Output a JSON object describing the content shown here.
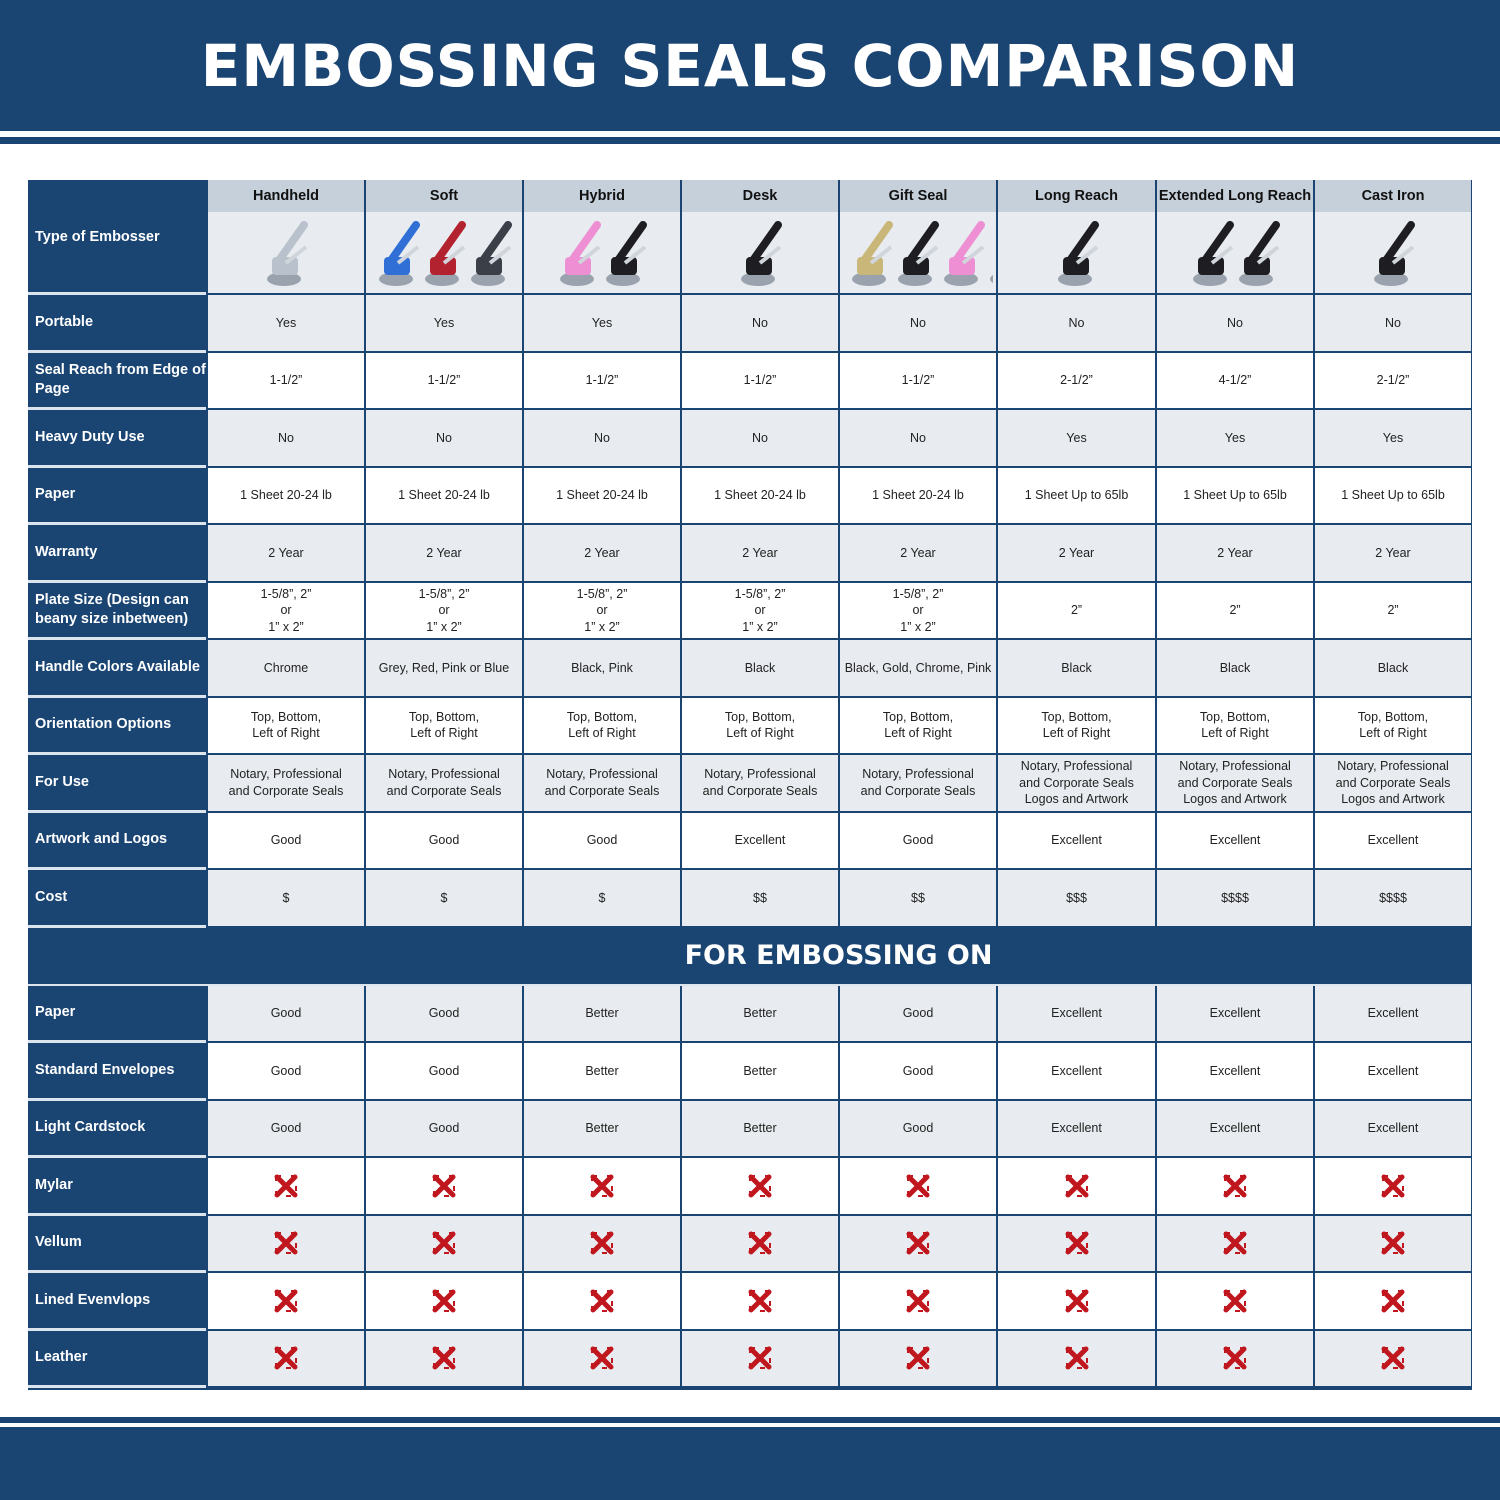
{
  "title": "EMBOSSING SEALS COMPARISON",
  "colors": {
    "brand_blue": "#1a4573",
    "header_gray": "#c5d0db",
    "row_gray": "#e8ecf0",
    "x_red": "#c0161e"
  },
  "header_label": "Type of Embosser",
  "columns": [
    {
      "name": "Handheld",
      "image": "chrome-handheld-embosser",
      "colors": [
        "#b9c2cc"
      ]
    },
    {
      "name": "Soft",
      "image": "blue-red-grey-soft-embossers",
      "colors": [
        "#2f6fd6",
        "#b3232f",
        "#3a3f48"
      ]
    },
    {
      "name": "Hybrid",
      "image": "pink-black-hybrid-embossers",
      "colors": [
        "#ee8fd3",
        "#1e1e22"
      ]
    },
    {
      "name": "Desk",
      "image": "black-desk-embosser",
      "colors": [
        "#1e1e22"
      ]
    },
    {
      "name": "Gift Seal",
      "image": "gold-black-pink-chrome-gift-seals",
      "colors": [
        "#c9b77a",
        "#1e1e22",
        "#ee8fd3",
        "#b9c2cc"
      ]
    },
    {
      "name": "Long Reach",
      "image": "black-long-reach-embosser",
      "colors": [
        "#1e1e22"
      ]
    },
    {
      "name": "Extended Long Reach",
      "image": "black-extended-long-reach-embossers",
      "colors": [
        "#1e1e22",
        "#1e1e22"
      ]
    },
    {
      "name": "Cast Iron",
      "image": "black-cast-iron-embosser",
      "colors": [
        "#1e1e22"
      ]
    }
  ],
  "rows": [
    {
      "label": "Portable",
      "values": [
        "Yes",
        "Yes",
        "Yes",
        "No",
        "No",
        "No",
        "No",
        "No"
      ]
    },
    {
      "label": "Seal Reach from Edge of Page",
      "values": [
        "1-1/2”",
        "1-1/2”",
        "1-1/2”",
        "1-1/2”",
        "1-1/2”",
        "2-1/2”",
        "4-1/2”",
        "2-1/2”"
      ]
    },
    {
      "label": "Heavy Duty Use",
      "values": [
        "No",
        "No",
        "No",
        "No",
        "No",
        "Yes",
        "Yes",
        "Yes"
      ]
    },
    {
      "label": "Paper",
      "values": [
        "1 Sheet 20-24 lb",
        "1 Sheet 20-24 lb",
        "1 Sheet 20-24 lb",
        "1 Sheet 20-24 lb",
        "1 Sheet 20-24 lb",
        "1 Sheet Up to 65lb",
        "1 Sheet Up to 65lb",
        "1 Sheet Up to 65lb"
      ]
    },
    {
      "label": "Warranty",
      "values": [
        "2 Year",
        "2 Year",
        "2 Year",
        "2 Year",
        "2 Year",
        "2 Year",
        "2 Year",
        "2 Year"
      ]
    },
    {
      "label": "Plate Size (Design can beany size inbetween)",
      "values": [
        "1-5/8”, 2”\nor\n1” x 2”",
        "1-5/8”, 2”\nor\n1” x 2”",
        "1-5/8”, 2”\nor\n1” x 2”",
        "1-5/8”, 2”\nor\n1” x 2”",
        "1-5/8”, 2”\nor\n1” x 2”",
        "2”",
        "2”",
        "2”"
      ]
    },
    {
      "label": "Handle Colors Available",
      "values": [
        "Chrome",
        "Grey, Red, Pink or Blue",
        "Black, Pink",
        "Black",
        "Black, Gold, Chrome, Pink",
        "Black",
        "Black",
        "Black"
      ]
    },
    {
      "label": "Orientation Options",
      "values": [
        "Top, Bottom,\nLeft of Right",
        "Top, Bottom,\nLeft of Right",
        "Top, Bottom,\nLeft of Right",
        "Top, Bottom,\nLeft of Right",
        "Top, Bottom,\nLeft of Right",
        "Top, Bottom,\nLeft of Right",
        "Top, Bottom,\nLeft of Right",
        "Top, Bottom,\nLeft of Right"
      ]
    },
    {
      "label": "For Use",
      "values": [
        "Notary, Professional\nand Corporate Seals",
        "Notary, Professional\nand Corporate Seals",
        "Notary, Professional\nand Corporate Seals",
        "Notary, Professional\nand Corporate Seals",
        "Notary, Professional\nand Corporate Seals",
        "Notary, Professional\nand Corporate Seals\nLogos and Artwork",
        "Notary, Professional\nand Corporate Seals\nLogos and Artwork",
        "Notary, Professional\nand Corporate Seals\nLogos and Artwork"
      ]
    },
    {
      "label": "Artwork and Logos",
      "values": [
        "Good",
        "Good",
        "Good",
        "Excellent",
        "Good",
        "Excellent",
        "Excellent",
        "Excellent"
      ]
    },
    {
      "label": "Cost",
      "values": [
        "$",
        "$",
        "$",
        "$$",
        "$$",
        "$$$",
        "$$$$",
        "$$$$"
      ]
    }
  ],
  "section_title": "FOR EMBOSSING ON",
  "section_rows": [
    {
      "label": "Paper",
      "values": [
        "Good",
        "Good",
        "Better",
        "Better",
        "Good",
        "Excellent",
        "Excellent",
        "Excellent"
      ]
    },
    {
      "label": "Standard Envelopes",
      "values": [
        "Good",
        "Good",
        "Better",
        "Better",
        "Good",
        "Excellent",
        "Excellent",
        "Excellent"
      ]
    },
    {
      "label": "Light Cardstock",
      "values": [
        "Good",
        "Good",
        "Better",
        "Better",
        "Good",
        "Excellent",
        "Excellent",
        "Excellent"
      ]
    },
    {
      "label": "Mylar",
      "values": [
        "red-x-icon",
        "red-x-icon",
        "red-x-icon",
        "red-x-icon",
        "red-x-icon",
        "red-x-icon",
        "red-x-icon",
        "red-x-icon"
      ]
    },
    {
      "label": "Vellum",
      "values": [
        "red-x-icon",
        "red-x-icon",
        "red-x-icon",
        "red-x-icon",
        "red-x-icon",
        "red-x-icon",
        "red-x-icon",
        "red-x-icon"
      ]
    },
    {
      "label": "Lined Evenvlops",
      "values": [
        "red-x-icon",
        "red-x-icon",
        "red-x-icon",
        "red-x-icon",
        "red-x-icon",
        "red-x-icon",
        "red-x-icon",
        "red-x-icon"
      ]
    },
    {
      "label": "Leather",
      "values": [
        "red-x-icon",
        "red-x-icon",
        "red-x-icon",
        "red-x-icon",
        "red-x-icon",
        "red-x-icon",
        "red-x-icon",
        "red-x-icon"
      ]
    }
  ]
}
